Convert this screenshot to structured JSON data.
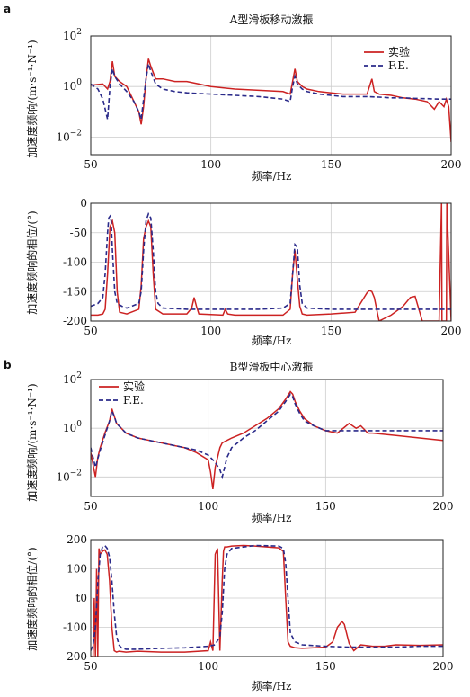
{
  "panel_labels": [
    "a",
    "b"
  ],
  "legend": {
    "exp": "实验",
    "fe": "F.E."
  },
  "colors": {
    "exp": "#cc2222",
    "fe": "#2a2a8a",
    "grid": "#cccccc"
  },
  "chart_data": [
    {
      "type": "line",
      "panel": "a",
      "title": "A型滑板移动激振",
      "xlabel": "频率/Hz",
      "ylabel": "加速度频响/(m·s⁻¹·N⁻¹)",
      "yscale": "log",
      "xlim": [
        50,
        200
      ],
      "ylim": [
        -2.7,
        2
      ],
      "xticks": [
        "50",
        "100",
        "150",
        "200"
      ],
      "yticks": [
        {
          "v": 2,
          "label": "10",
          "exp": "2"
        },
        {
          "v": 0,
          "label": "10",
          "exp": "0"
        },
        {
          "v": -2,
          "label": "10",
          "exp": "−2"
        }
      ],
      "legend_pos": "top-right",
      "series": [
        {
          "name": "实验",
          "key": "exp",
          "dash": false,
          "x": [
            50,
            53,
            55,
            57,
            58,
            59,
            60,
            62,
            65,
            68,
            70,
            71,
            72,
            73,
            74,
            75,
            77,
            80,
            85,
            90,
            95,
            100,
            110,
            120,
            130,
            133,
            134,
            135,
            136,
            138,
            140,
            145,
            150,
            155,
            160,
            165,
            167,
            168,
            170,
            175,
            180,
            185,
            190,
            193,
            195,
            197,
            198,
            199,
            200
          ],
          "y": [
            0.05,
            0.08,
            0.1,
            -0.1,
            0.2,
            1.0,
            0.4,
            0.2,
            0.0,
            -0.6,
            -1.0,
            -1.5,
            -0.8,
            0.3,
            1.1,
            0.8,
            0.3,
            0.3,
            0.2,
            0.2,
            0.1,
            0.0,
            -0.1,
            -0.15,
            -0.2,
            -0.3,
            0.2,
            0.7,
            0.2,
            0.0,
            -0.1,
            -0.2,
            -0.25,
            -0.3,
            -0.3,
            -0.3,
            0.3,
            -0.2,
            -0.3,
            -0.35,
            -0.45,
            -0.5,
            -0.6,
            -0.9,
            -0.6,
            -0.8,
            -0.5,
            -0.8,
            -2.2
          ]
        },
        {
          "name": "F.E.",
          "key": "fe",
          "dash": true,
          "x": [
            50,
            53,
            55,
            57,
            58,
            59,
            60,
            62,
            65,
            68,
            70,
            71,
            72,
            73,
            74,
            75,
            77,
            80,
            85,
            90,
            95,
            100,
            110,
            120,
            130,
            133,
            134,
            135,
            136,
            138,
            140,
            145,
            150,
            155,
            160,
            165,
            170,
            175,
            180,
            185,
            190,
            195,
            200
          ],
          "y": [
            0.1,
            -0.1,
            -0.5,
            -1.3,
            0.0,
            0.7,
            0.4,
            0.1,
            -0.2,
            -0.6,
            -1.0,
            -1.3,
            -0.5,
            0.3,
            0.9,
            0.6,
            0.1,
            -0.1,
            -0.2,
            -0.25,
            -0.28,
            -0.3,
            -0.35,
            -0.4,
            -0.5,
            -0.6,
            0.0,
            0.4,
            0.1,
            -0.1,
            -0.2,
            -0.3,
            -0.35,
            -0.4,
            -0.4,
            -0.4,
            -0.42,
            -0.45,
            -0.45,
            -0.47,
            -0.48,
            -0.5,
            -0.5
          ]
        }
      ]
    },
    {
      "type": "line",
      "panel": "a",
      "title": "",
      "xlabel": "频率/Hz",
      "ylabel": "加速度频响的相位/(°)",
      "yscale": "linear",
      "xlim": [
        50,
        200
      ],
      "ylim": [
        -200,
        0
      ],
      "xticks": [
        "50",
        "100",
        "150",
        "200"
      ],
      "yticks": [
        {
          "v": 0,
          "label": "0"
        },
        {
          "v": -50,
          "label": "-50"
        },
        {
          "v": -100,
          "label": "-100"
        },
        {
          "v": -150,
          "label": "-150"
        },
        {
          "v": -200,
          "label": "-200"
        }
      ],
      "series": [
        {
          "name": "实验",
          "key": "exp",
          "dash": false,
          "x": [
            50,
            53,
            55,
            56,
            57,
            58,
            59,
            60,
            61,
            62,
            65,
            70,
            71,
            72,
            73,
            74,
            75,
            76,
            77,
            80,
            85,
            90,
            92,
            93,
            94,
            95,
            100,
            105,
            106,
            107,
            110,
            120,
            130,
            133,
            134,
            135,
            136,
            137,
            138,
            140,
            150,
            160,
            163,
            165,
            166,
            167,
            168,
            170,
            175,
            180,
            183,
            185,
            188,
            195,
            196,
            196.2,
            197,
            198,
            198.2,
            200
          ],
          "y": [
            -190,
            -190,
            -188,
            -180,
            -120,
            -40,
            -30,
            -50,
            -150,
            -185,
            -188,
            -180,
            -140,
            -60,
            -40,
            -30,
            -40,
            -120,
            -180,
            -188,
            -188,
            -188,
            -178,
            -160,
            -175,
            -188,
            -189,
            -190,
            -180,
            -188,
            -190,
            -190,
            -190,
            -180,
            -120,
            -80,
            -130,
            -175,
            -188,
            -190,
            -188,
            -185,
            -165,
            -152,
            -148,
            -150,
            -160,
            -200,
            -190,
            -175,
            -160,
            -158,
            -200,
            -200,
            0,
            -200,
            -200,
            -200,
            0,
            -200
          ]
        },
        {
          "name": "F.E.",
          "key": "fe",
          "dash": true,
          "x": [
            50,
            53,
            55,
            56,
            57,
            57.5,
            58,
            58.5,
            59,
            60,
            61,
            63,
            65,
            70,
            71,
            72,
            73,
            74,
            75,
            76,
            77,
            78,
            80,
            90,
            100,
            110,
            120,
            130,
            133,
            134,
            135,
            136,
            137,
            138,
            140,
            150,
            160,
            170,
            180,
            190,
            200
          ],
          "y": [
            -175,
            -170,
            -160,
            -120,
            -50,
            -25,
            -22,
            -30,
            -80,
            -150,
            -170,
            -175,
            -178,
            -170,
            -150,
            -80,
            -30,
            -18,
            -25,
            -80,
            -150,
            -170,
            -178,
            -180,
            -180,
            -180,
            -180,
            -178,
            -170,
            -120,
            -70,
            -75,
            -140,
            -170,
            -178,
            -180,
            -180,
            -180,
            -180,
            -180,
            -180
          ]
        }
      ]
    },
    {
      "type": "line",
      "panel": "b",
      "title": "B型滑板中心激振",
      "xlabel": "频率/Hz",
      "ylabel": "加速度频响/(m·s⁻¹·N⁻¹)",
      "yscale": "log",
      "xlim": [
        50,
        200
      ],
      "ylim": [
        -2.8,
        2
      ],
      "xticks": [
        "50",
        "100",
        "150",
        "200"
      ],
      "yticks": [
        {
          "v": 2,
          "label": "10",
          "exp": "2"
        },
        {
          "v": 0,
          "label": "10",
          "exp": "0"
        },
        {
          "v": -2,
          "label": "10",
          "exp": "−2"
        }
      ],
      "legend_pos": "top-left",
      "series": [
        {
          "name": "实验",
          "key": "exp",
          "dash": false,
          "x": [
            50,
            51,
            52,
            53,
            54,
            56,
            58,
            59,
            60,
            61,
            63,
            65,
            70,
            75,
            80,
            85,
            90,
            95,
            100,
            101,
            102,
            103,
            104,
            105,
            106,
            108,
            110,
            115,
            120,
            125,
            130,
            133,
            135,
            136,
            137,
            139,
            141,
            145,
            150,
            155,
            160,
            163,
            165,
            168,
            170,
            180,
            190,
            200
          ],
          "y": [
            -1.0,
            -1.5,
            -2.0,
            -1.2,
            -0.8,
            -0.2,
            0.3,
            0.8,
            0.5,
            0.2,
            0.0,
            -0.2,
            -0.4,
            -0.5,
            -0.6,
            -0.7,
            -0.8,
            -1.0,
            -1.3,
            -1.8,
            -2.5,
            -1.6,
            -1.2,
            -0.8,
            -0.6,
            -0.5,
            -0.4,
            -0.2,
            0.1,
            0.4,
            0.8,
            1.2,
            1.5,
            1.4,
            1.1,
            0.7,
            0.4,
            0.1,
            -0.1,
            -0.2,
            0.2,
            0.0,
            0.1,
            -0.2,
            -0.2,
            -0.3,
            -0.4,
            -0.5
          ]
        },
        {
          "name": "F.E.",
          "key": "fe",
          "dash": true,
          "x": [
            50,
            52,
            54,
            56,
            58,
            59,
            60,
            61,
            63,
            65,
            70,
            75,
            80,
            85,
            90,
            95,
            100,
            103,
            105,
            106,
            107,
            108,
            110,
            115,
            120,
            125,
            130,
            133,
            135,
            136,
            137,
            139,
            141,
            145,
            150,
            160,
            170,
            180,
            190,
            200
          ],
          "y": [
            -0.8,
            -1.6,
            -0.9,
            -0.3,
            0.3,
            0.7,
            0.5,
            0.2,
            0.0,
            -0.2,
            -0.4,
            -0.5,
            -0.6,
            -0.7,
            -0.8,
            -0.9,
            -1.1,
            -1.4,
            -1.7,
            -2.0,
            -1.6,
            -1.2,
            -0.8,
            -0.4,
            -0.1,
            0.3,
            0.7,
            1.1,
            1.4,
            1.3,
            1.0,
            0.6,
            0.3,
            0.1,
            -0.1,
            -0.1,
            -0.1,
            -0.1,
            -0.1,
            -0.1
          ]
        }
      ]
    },
    {
      "type": "line",
      "panel": "b",
      "title": "",
      "xlabel": "频率/Hz",
      "ylabel": "加速度频响的相位/(°)",
      "yscale": "linear",
      "xlim": [
        50,
        200
      ],
      "ylim": [
        -200,
        200
      ],
      "xticks": [
        "50",
        "100",
        "150",
        "200"
      ],
      "yticks": [
        {
          "v": 200,
          "label": "200"
        },
        {
          "v": 100,
          "label": "100"
        },
        {
          "v": 0,
          "label": "t0"
        },
        {
          "v": -100,
          "label": "-100"
        },
        {
          "v": -200,
          "label": "-200"
        }
      ],
      "series": [
        {
          "name": "实验",
          "key": "exp",
          "dash": false,
          "x": [
            50,
            51,
            51.5,
            52,
            52.5,
            53,
            53.5,
            54,
            55,
            56,
            57,
            58,
            59,
            60,
            61,
            62,
            65,
            70,
            80,
            90,
            100,
            101,
            102,
            103,
            104,
            105,
            106,
            106.5,
            107,
            108,
            110,
            115,
            120,
            125,
            130,
            132,
            133,
            134,
            135,
            137,
            140,
            145,
            150,
            153,
            155,
            157,
            158,
            160,
            162,
            165,
            170,
            175,
            180,
            190,
            200
          ],
          "y": [
            -200,
            -200,
            0,
            -200,
            100,
            -200,
            170,
            150,
            160,
            165,
            150,
            60,
            -100,
            -180,
            -185,
            -182,
            -185,
            -182,
            -185,
            -185,
            -180,
            -150,
            -180,
            150,
            170,
            -180,
            60,
            160,
            175,
            175,
            178,
            180,
            178,
            175,
            172,
            160,
            0,
            -150,
            -165,
            -170,
            -172,
            -170,
            -168,
            -150,
            -100,
            -80,
            -90,
            -155,
            -180,
            -160,
            -165,
            -165,
            -160,
            -162,
            -160
          ]
        },
        {
          "name": "F.E.",
          "key": "fe",
          "dash": true,
          "x": [
            50,
            51,
            52,
            53,
            54,
            55,
            56,
            57,
            58,
            59,
            60,
            61,
            62,
            63,
            65,
            70,
            80,
            90,
            100,
            103,
            105,
            106,
            107,
            108,
            110,
            120,
            130,
            132,
            133,
            134,
            135,
            137,
            140,
            150,
            160,
            170,
            180,
            190,
            200
          ],
          "y": [
            -180,
            -160,
            -100,
            50,
            150,
            175,
            180,
            170,
            140,
            60,
            -50,
            -130,
            -160,
            -170,
            -175,
            -175,
            -172,
            -170,
            -165,
            -160,
            -130,
            -50,
            100,
            150,
            170,
            180,
            178,
            170,
            120,
            0,
            -120,
            -150,
            -160,
            -165,
            -168,
            -168,
            -168,
            -165,
            -165
          ]
        }
      ]
    }
  ]
}
